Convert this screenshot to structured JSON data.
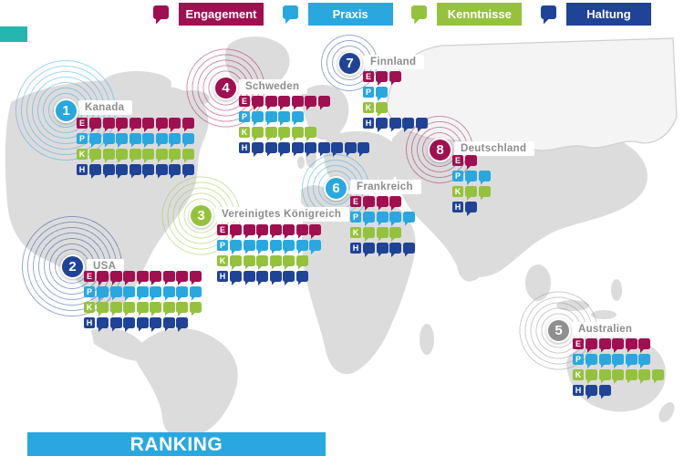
{
  "legend": {
    "items": [
      {
        "key": "E",
        "label": "Engagement",
        "color": "#A01050"
      },
      {
        "key": "P",
        "label": "Praxis",
        "color": "#29A8E0"
      },
      {
        "key": "K",
        "label": "Kenntnisse",
        "color": "#95C23D"
      },
      {
        "key": "H",
        "label": "Haltung",
        "color": "#1F4396"
      }
    ]
  },
  "ranking_label": "RANKING",
  "colors": {
    "ranking_bar": "#29A8E0",
    "accent_teal": "#25B6B0",
    "map_land": "#DCDCDC"
  },
  "chart_data": {
    "type": "pictogram-map",
    "title": "RANKING",
    "categories": [
      "Engagement",
      "Praxis",
      "Kenntnisse",
      "Haltung"
    ],
    "category_keys": [
      "E",
      "P",
      "K",
      "H"
    ],
    "unit": "speech-bubble icons per category",
    "countries": [
      {
        "rank": 1,
        "name": "Kanada",
        "badge_color": "#29A8E0",
        "values": {
          "E": 8,
          "P": 8,
          "K": 8,
          "H": 8
        }
      },
      {
        "rank": 2,
        "name": "USA",
        "badge_color": "#1F4396",
        "values": {
          "E": 8,
          "P": 8,
          "K": 8,
          "H": 7
        }
      },
      {
        "rank": 3,
        "name": "Vereinigtes Königreich",
        "badge_color": "#95C23D",
        "values": {
          "E": 7,
          "P": 7,
          "K": 6,
          "H": 6
        }
      },
      {
        "rank": 4,
        "name": "Schweden",
        "badge_color": "#A01050",
        "values": {
          "E": 6,
          "P": 4,
          "K": 5,
          "H": 9
        }
      },
      {
        "rank": 5,
        "name": "Australien",
        "badge_color": "#8F8F8F",
        "values": {
          "E": 5,
          "P": 5,
          "K": 6,
          "H": 2
        }
      },
      {
        "rank": 6,
        "name": "Frankreich",
        "badge_color": "#29A8E0",
        "values": {
          "E": 3,
          "P": 4,
          "K": 3,
          "H": 4
        }
      },
      {
        "rank": 7,
        "name": "Finnland",
        "badge_color": "#1F4396",
        "values": {
          "E": 2,
          "P": 1,
          "K": 1,
          "H": 4
        }
      },
      {
        "rank": 8,
        "name": "Deutschland",
        "badge_color": "#A01050",
        "values": {
          "E": 1,
          "P": 2,
          "K": 2,
          "H": 1
        }
      }
    ]
  }
}
